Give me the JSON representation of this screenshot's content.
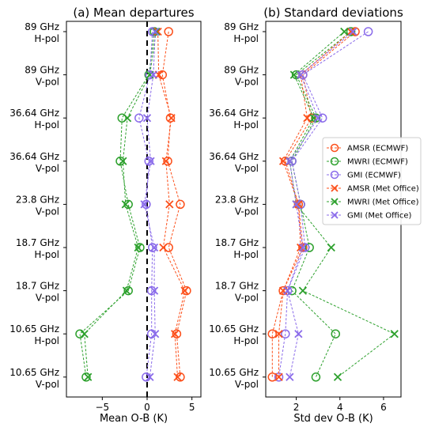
{
  "colors": {
    "AMSR (ECMWF)": "#fc4f1a",
    "MWRI (ECMWF)": "#2ca02c",
    "GMI (ECMWF)": "#8a6bea",
    "AMSR (Met Office)": "#fc4f1a",
    "MWRI (Met Office)": "#2ca02c",
    "GMI (Met Office)": "#8a6bea"
  },
  "chart_data": [
    {
      "type": "scatter",
      "title": "(a) Mean departures",
      "xlabel": "Mean O-B (K)",
      "ylabel": "",
      "xlim": [
        -9,
        6
      ],
      "xticks": [
        -5,
        0,
        5
      ],
      "zero_line": "dashed",
      "grid": false,
      "categories": [
        {
          "line1": "89 GHz",
          "line2": "H-pol"
        },
        {
          "line1": "89 GHz",
          "line2": "V-pol"
        },
        {
          "line1": "36.64 GHz",
          "line2": "H-pol"
        },
        {
          "line1": "36.64 GHz",
          "line2": "V-pol"
        },
        {
          "line1": "23.8 GHz",
          "line2": "V-pol"
        },
        {
          "line1": "18.7 GHz",
          "line2": "H-pol"
        },
        {
          "line1": "18.7 GHz",
          "line2": "V-pol"
        },
        {
          "line1": "10.65 GHz",
          "line2": "H-pol"
        },
        {
          "line1": "10.65 GHz",
          "line2": "V-pol"
        }
      ],
      "series": [
        {
          "name": "AMSR (ECMWF)",
          "marker": "circle",
          "values": [
            2.4,
            1.7,
            2.6,
            2.3,
            3.7,
            2.4,
            4.4,
            3.3,
            3.7
          ]
        },
        {
          "name": "MWRI (ECMWF)",
          "marker": "circle",
          "values": [
            0.8,
            0.2,
            -2.8,
            -3.0,
            -2.1,
            -0.8,
            -2.1,
            -7.5,
            -6.8
          ]
        },
        {
          "name": "GMI (ECMWF)",
          "marker": "circle",
          "values": [
            0.6,
            0.3,
            -0.9,
            0.2,
            -0.1,
            0.6,
            0.5,
            0.5,
            -0.1
          ]
        },
        {
          "name": "AMSR (Met Office)",
          "marker": "x",
          "values": [
            1.2,
            1.3,
            2.7,
            2.1,
            2.5,
            1.8,
            4.2,
            3.1,
            3.4
          ]
        },
        {
          "name": "MWRI (Met Office)",
          "marker": "x",
          "values": [
            1.0,
            0.3,
            -2.2,
            -2.7,
            -2.4,
            -1.0,
            -2.3,
            -7.0,
            -6.6
          ]
        },
        {
          "name": "GMI (Met Office)",
          "marker": "x",
          "values": [
            0.9,
            0.7,
            0.0,
            0.4,
            -0.3,
            0.8,
            0.8,
            0.9,
            0.3
          ]
        }
      ]
    },
    {
      "type": "scatter",
      "title": "(b) Standard deviations",
      "xlabel": "Std dev O-B (K)",
      "ylabel": "",
      "xlim": [
        0.6,
        6.8
      ],
      "xticks": [
        2,
        4,
        6
      ],
      "grid": false,
      "legend": "center-right",
      "categories": [
        {
          "line1": "89 GHz",
          "line2": "H-pol"
        },
        {
          "line1": "89 GHz",
          "line2": "V-pol"
        },
        {
          "line1": "36.64 GHz",
          "line2": "H-pol"
        },
        {
          "line1": "36.64 GHz",
          "line2": "V-pol"
        },
        {
          "line1": "23.8 GHz",
          "line2": "V-pol"
        },
        {
          "line1": "18.7 GHz",
          "line2": "H-pol"
        },
        {
          "line1": "18.7 GHz",
          "line2": "V-pol"
        },
        {
          "line1": "10.65 GHz",
          "line2": "H-pol"
        },
        {
          "line1": "10.65 GHz",
          "line2": "V-pol"
        }
      ],
      "series": [
        {
          "name": "AMSR (ECMWF)",
          "marker": "circle",
          "values": [
            4.7,
            2.3,
            2.7,
            1.5,
            2.1,
            2.3,
            1.4,
            0.9,
            0.9
          ]
        },
        {
          "name": "MWRI (ECMWF)",
          "marker": "circle",
          "values": [
            4.5,
            2.0,
            2.9,
            1.8,
            2.2,
            2.6,
            1.8,
            3.8,
            2.9
          ]
        },
        {
          "name": "GMI (ECMWF)",
          "marker": "circle",
          "values": [
            5.3,
            2.3,
            3.2,
            1.8,
            2.2,
            2.4,
            1.6,
            1.5,
            1.2
          ]
        },
        {
          "name": "AMSR (Met Office)",
          "marker": "x",
          "values": [
            4.5,
            2.2,
            2.5,
            1.4,
            2.1,
            2.2,
            1.4,
            1.2,
            1.2
          ]
        },
        {
          "name": "MWRI (Met Office)",
          "marker": "x",
          "values": [
            4.2,
            1.9,
            2.8,
            1.7,
            2.0,
            3.6,
            2.3,
            6.5,
            3.9
          ]
        },
        {
          "name": "GMI (Met Office)",
          "marker": "x",
          "values": [
            4.6,
            2.2,
            3.0,
            1.7,
            2.0,
            2.3,
            1.6,
            2.1,
            1.7
          ]
        }
      ]
    }
  ]
}
